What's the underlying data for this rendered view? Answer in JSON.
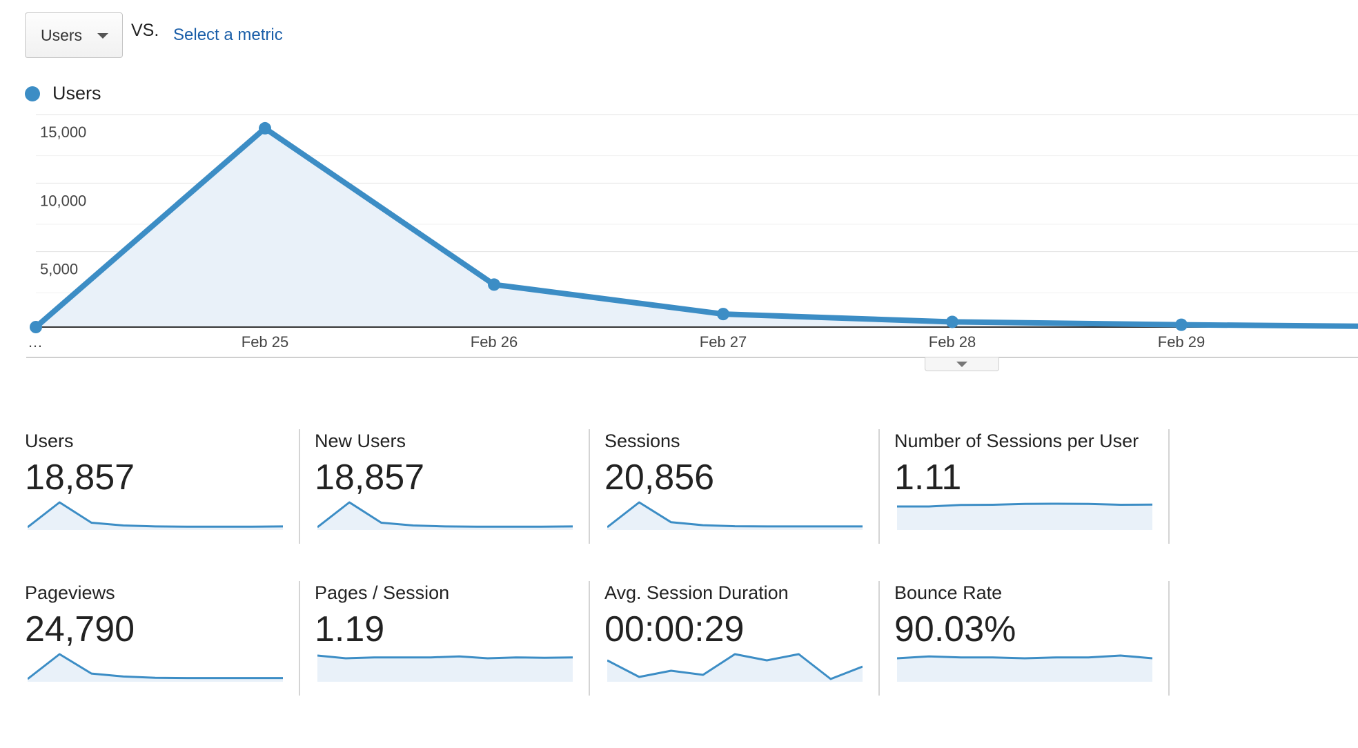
{
  "metric_selector": {
    "value": "Users",
    "icon": "chevron-down-icon"
  },
  "vs_label": "VS.",
  "select_metric_link": "Select a metric",
  "legend": {
    "label": "Users",
    "color": "#3c8dc5"
  },
  "chart_data": {
    "type": "area",
    "x": [
      "…",
      "Feb 25",
      "Feb 26",
      "Feb 27",
      "Feb 28",
      "Feb 29",
      ""
    ],
    "series": [
      {
        "name": "Users",
        "values": [
          0,
          14500,
          3100,
          950,
          380,
          170,
          60
        ]
      }
    ],
    "ylim": [
      0,
      15000
    ],
    "yticks": [
      5000,
      10000,
      15000
    ],
    "yticklabels": [
      "5,000",
      "10,000",
      "15,000"
    ],
    "grid": true,
    "color": "#3c8dc5",
    "fill": "#e9f1f9"
  },
  "scorecards": [
    {
      "name": "Users",
      "value": "18,857",
      "spark": [
        0,
        1,
        0.18,
        0.07,
        0.03,
        0.02,
        0.02,
        0.02,
        0.03
      ]
    },
    {
      "name": "New Users",
      "value": "18,857",
      "spark": [
        0,
        1,
        0.18,
        0.07,
        0.03,
        0.02,
        0.02,
        0.02,
        0.03
      ]
    },
    {
      "name": "Sessions",
      "value": "20,856",
      "spark": [
        0,
        1,
        0.2,
        0.08,
        0.04,
        0.03,
        0.03,
        0.03,
        0.03
      ]
    },
    {
      "name": "Number of Sessions per User",
      "value": "1.11",
      "spark": [
        1.1,
        1.1,
        1.107,
        1.108,
        1.112,
        1.113,
        1.112,
        1.108,
        1.109
      ]
    },
    {
      "name": "Pageviews",
      "value": "24,790",
      "spark": [
        0,
        1,
        0.22,
        0.1,
        0.05,
        0.04,
        0.04,
        0.04,
        0.04
      ]
    },
    {
      "name": "Pages / Session",
      "value": "1.19",
      "spark": [
        1.21,
        1.18,
        1.19,
        1.19,
        1.19,
        1.2,
        1.18,
        1.19,
        1.185,
        1.19
      ]
    },
    {
      "name": "Avg. Session Duration",
      "value": "00:00:29",
      "spark": [
        30,
        22,
        25,
        23,
        33,
        30,
        33,
        21,
        27
      ]
    },
    {
      "name": "Bounce Rate",
      "value": "90.03%",
      "spark": [
        90.0,
        90.2,
        90.1,
        90.1,
        90.0,
        90.1,
        90.1,
        90.3,
        90.0
      ]
    }
  ]
}
